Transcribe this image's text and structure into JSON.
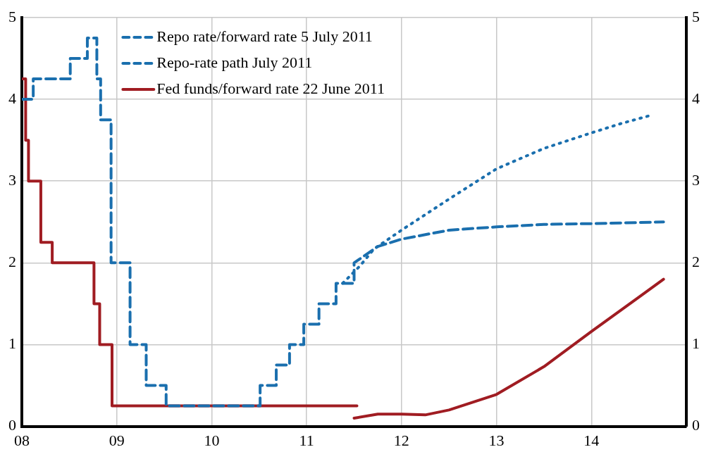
{
  "chart_data": {
    "type": "line",
    "xlim": [
      2008,
      2015
    ],
    "xticks": [
      {
        "value": 2008,
        "label": "08"
      },
      {
        "value": 2009,
        "label": "09"
      },
      {
        "value": 2010,
        "label": "10"
      },
      {
        "value": 2011,
        "label": "11"
      },
      {
        "value": 2012,
        "label": "12"
      },
      {
        "value": 2013,
        "label": "13"
      },
      {
        "value": 2014,
        "label": "14"
      }
    ],
    "ylim": [
      0,
      5
    ],
    "yticks": [
      0,
      1,
      2,
      3,
      4,
      5
    ],
    "y2lim": [
      0,
      5
    ],
    "y2ticks": [
      0,
      1,
      2,
      3,
      4,
      5
    ],
    "grid": true,
    "legend": "top left",
    "marker": "none",
    "series": [
      {
        "name": "Repo rate/forward rate 5 July 2011",
        "color": "#1a6fae",
        "line_style": "dashed",
        "x": [
          2008,
          2008.12,
          2008.12,
          2008.51,
          2008.51,
          2008.69,
          2008.69,
          2008.79,
          2008.79,
          2008.83,
          2008.83,
          2008.94,
          2008.94,
          2009.14,
          2009.14,
          2009.31,
          2009.31,
          2009.52,
          2009.52,
          2010.51,
          2010.51,
          2010.68,
          2010.68,
          2010.82,
          2010.82,
          2010.97,
          2010.97,
          2011.13,
          2011.13,
          2011.31,
          2011.31,
          2011.5,
          2011.5,
          2011.75,
          2012,
          2012.5,
          2013,
          2013.5,
          2014,
          2014.76
        ],
        "values": [
          4,
          4,
          4.25,
          4.25,
          4.5,
          4.5,
          4.75,
          4.75,
          4.25,
          4.25,
          3.75,
          3.75,
          2,
          2,
          1,
          1,
          0.5,
          0.5,
          0.25,
          0.25,
          0.5,
          0.5,
          0.75,
          0.75,
          1,
          1,
          1.25,
          1.25,
          1.5,
          1.5,
          1.75,
          1.75,
          2,
          2.2,
          2.29,
          2.4,
          2.44,
          2.47,
          2.48,
          2.5
        ]
      },
      {
        "name": "Repo-rate path July 2011",
        "color": "#1a6fae",
        "line_style": "dotted",
        "x": [
          2011.38,
          2011.56,
          2011.71,
          2012,
          2012.5,
          2013,
          2013.5,
          2014,
          2014.3,
          2014.61
        ],
        "values": [
          1.75,
          1.96,
          2.17,
          2.4,
          2.78,
          3.15,
          3.4,
          3.59,
          3.7,
          3.8
        ]
      },
      {
        "name": "Fed funds/forward rate 22 June 2011",
        "color": "#a01c22",
        "line_style": "solid",
        "x": [
          2008,
          2008.04,
          2008.04,
          2008.07,
          2008.07,
          2008.2,
          2008.2,
          2008.32,
          2008.32,
          2008.76,
          2008.76,
          2008.82,
          2008.82,
          2008.95,
          2008.95,
          2011.53
        ],
        "values": [
          4.25,
          4.25,
          3.5,
          3.5,
          3,
          3,
          2.25,
          2.25,
          2,
          2,
          1.5,
          1.5,
          1,
          1,
          0.25,
          0.25
        ]
      },
      {
        "color": "#a01c22",
        "line_style": "solid",
        "x": [
          2011.5,
          2011.75,
          2012,
          2012.25,
          2012.5,
          2013,
          2013.5,
          2014,
          2014.5,
          2014.76
        ],
        "values": [
          0.1,
          0.15,
          0.15,
          0.14,
          0.2,
          0.39,
          0.73,
          1.16,
          1.58,
          1.8
        ]
      }
    ]
  }
}
